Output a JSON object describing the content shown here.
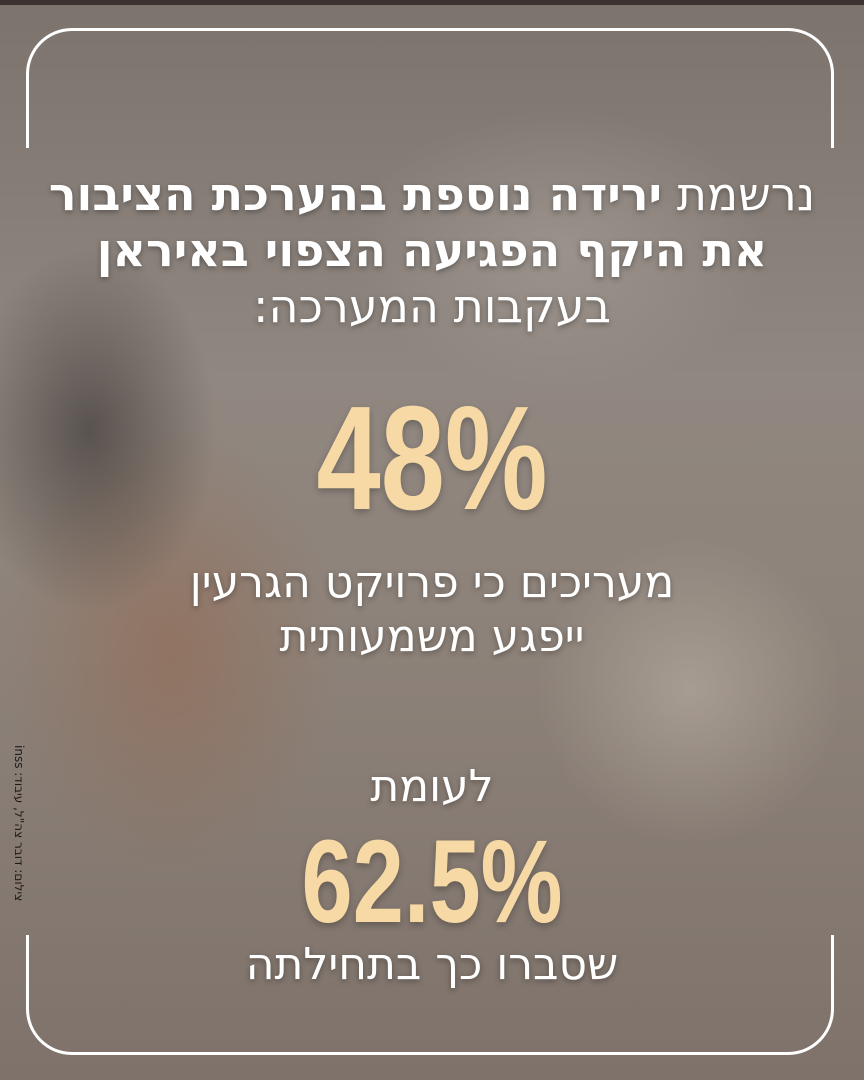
{
  "headline": {
    "prefix": "נרשמת",
    "bold_line1": "ירידה נוספת בהערכת הציבור",
    "bold_line2": "את היקף הפגיעה הצפוי באיראן",
    "line3": "בעקבות המערכה:"
  },
  "stat1": {
    "value": "48%"
  },
  "desc1": {
    "line1": "מעריכים כי פרויקט הגרעין",
    "line2": "ייפגע משמעותית"
  },
  "compare": "לעומת",
  "stat2": {
    "value": "62.5%"
  },
  "desc2": "שסברו כך בתחילתה",
  "credit": "צילום: דובר צה\"ל, עיבוד: inss",
  "colors": {
    "accent": "#f6d9a4",
    "text": "#ffffff",
    "frame": "#ffffff"
  }
}
